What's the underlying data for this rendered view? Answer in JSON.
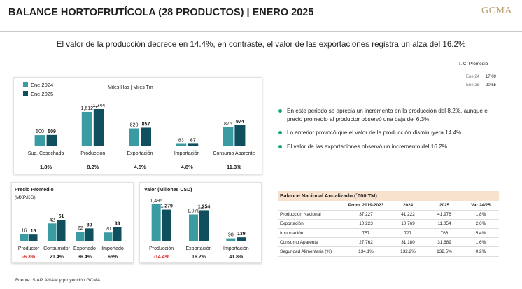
{
  "header": {
    "title": "BALANCE HORTOFRUTÍCOLA (28 PRODUCTOS) | ENERO 2025",
    "logo": "GCMA",
    "subtitle": "El valor de la producción decrece en 14.4%, en contraste, el valor de las exportaciones registra un alza del 16.2%"
  },
  "colors": {
    "series_2024": "#3a9ca2",
    "series_2025": "#0f4f5e",
    "negative": "#d9221c",
    "bullet": "#1aa86b",
    "table_header_bg": "#f8e1cd"
  },
  "tipo_cambio": {
    "title": "T. C. Promedio",
    "rows": [
      {
        "label": "Ene 24",
        "value": "17.09"
      },
      {
        "label": "Ene 25",
        "value": "20.55"
      }
    ]
  },
  "chart_data": [
    {
      "type": "bar",
      "title": "Miles Has | Miles Tm",
      "legend": [
        "Ene 2024",
        "Ene 2025"
      ],
      "legend_position": "top-left",
      "categories": [
        "Sup. Cosechada",
        "Producción",
        "Exportación",
        "Importación",
        "Consumo Aparente"
      ],
      "series": [
        {
          "name": "Ene 2024",
          "values": [
            500,
            1612,
            820,
            83,
            875
          ],
          "labels": [
            "500",
            "1,612",
            "820",
            "83",
            "875"
          ]
        },
        {
          "name": "Ene 2025",
          "values": [
            509,
            1744,
            857,
            87,
            974
          ],
          "labels": [
            "509",
            "1,744",
            "857",
            "87",
            "974"
          ]
        }
      ],
      "changes": [
        "1.8%",
        "8.2%",
        "4.5%",
        "4.8%",
        "11.3%"
      ]
    },
    {
      "type": "bar",
      "title": "Precio Promedio",
      "subtitle": "(MXP/KG)",
      "categories": [
        "Productor",
        "Consumidor",
        "Exportado",
        "Importado"
      ],
      "series": [
        {
          "name": "Ene 2024",
          "values": [
            16,
            42,
            22,
            20
          ],
          "labels": [
            "16",
            "42",
            "22",
            "20"
          ]
        },
        {
          "name": "Ene 2025",
          "values": [
            15,
            51,
            30,
            33
          ],
          "labels": [
            "15",
            "51",
            "30",
            "33"
          ]
        }
      ],
      "changes": [
        "-6.3%",
        "21.4%",
        "36.4%",
        "65%"
      ]
    },
    {
      "type": "bar",
      "title": "Valor (Millones USD)",
      "categories": [
        "Producción",
        "Exportación",
        "Importación"
      ],
      "series": [
        {
          "name": "Ene 2024",
          "values": [
            1496,
            1079,
            98
          ],
          "labels": [
            "1,496",
            "1,079",
            "98"
          ]
        },
        {
          "name": "Ene 2025",
          "values": [
            1279,
            1254,
            139
          ],
          "labels": [
            "1,279",
            "1,254",
            "139"
          ]
        }
      ],
      "changes": [
        "-14.4%",
        "16.2%",
        "41.8%"
      ]
    }
  ],
  "bullets": [
    "En este periodo se aprecia un incremento en la producción del 8.2%, aunque el precio promedio al productor observó una baja del 6.3%.",
    "Lo anterior provocó que el valor de la producción disminuyera 14.4%.",
    "El valor de las exportaciones observó un incremento del 16.2%."
  ],
  "balance_table": {
    "title": "Balance Nacional Anualizado (´000 TM)",
    "columns": [
      "",
      "Prom. 2019-2023",
      "2024",
      "2025",
      "Var 24/25"
    ],
    "rows": [
      [
        "Producción Nacional",
        "37,227",
        "41,222",
        "41,976",
        "1.8%"
      ],
      [
        "Exportación",
        "10,223",
        "10,769",
        "11,054",
        "2.6%"
      ],
      [
        "Importación",
        "757",
        "727",
        "766",
        "5.4%"
      ],
      [
        "Consumo Aparente",
        "27,762",
        "31,180",
        "31,689",
        "1.6%"
      ],
      [
        "Seguridad Alimentaria (%)",
        "134.1%",
        "132.2%",
        "132.5%",
        "0.2%"
      ]
    ]
  },
  "footer": {
    "source": "Fuente: SIAP, ANAM y proyección GCMA."
  }
}
